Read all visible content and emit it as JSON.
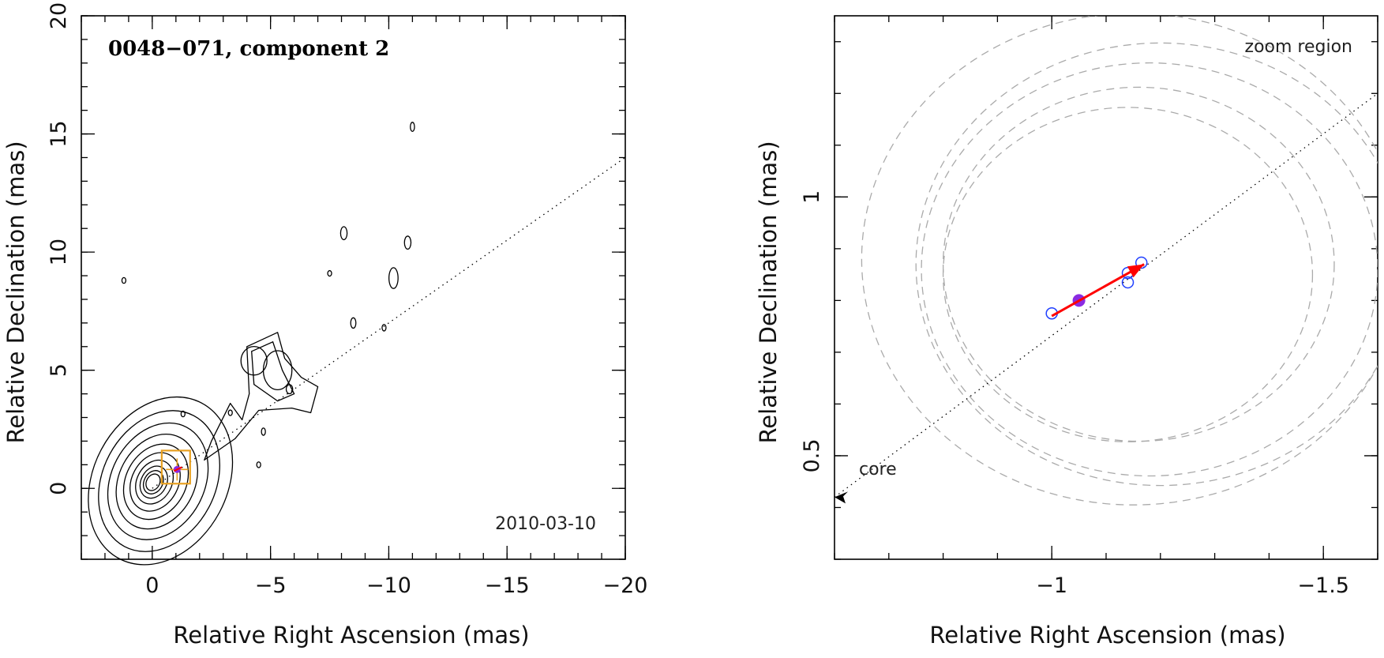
{
  "chart_data": [
    {
      "type": "contour",
      "title": "0048−071, component 2",
      "epoch": "2010-03-10",
      "xlabel": "Relative Right Ascension (mas)",
      "ylabel": "Relative Declination (mas)",
      "xlim": [
        3,
        -20
      ],
      "ylim": [
        -3,
        20
      ],
      "x_ticks": [
        0,
        -5,
        -10,
        -15,
        -20
      ],
      "x_tick_labels": [
        "0",
        "−5",
        "−10",
        "−15",
        "−20"
      ],
      "y_ticks": [
        0,
        5,
        10,
        15,
        20
      ],
      "y_tick_labels": [
        "0",
        "5",
        "10",
        "15",
        "20"
      ],
      "jet_axis_pa_deg": -55,
      "core_position": [
        0,
        0
      ],
      "component_position": [
        -1.05,
        0.8
      ],
      "zoom_box": {
        "x": [
          -0.5,
          -1.6
        ],
        "y": [
          0.3,
          1.35
        ]
      },
      "contour_center": [
        0.0,
        0.25
      ],
      "contour_levels": [
        0.34,
        0.48,
        0.66,
        0.9,
        1.2,
        1.55,
        1.95,
        2.4,
        2.9,
        3.45
      ],
      "blobs": [
        {
          "x": -4.3,
          "y": 5.4,
          "rx": 1.0,
          "ry": 1.1
        },
        {
          "x": -5.3,
          "y": 5.0,
          "rx": 1.1,
          "ry": 1.5
        },
        {
          "x": -5.8,
          "y": 4.2,
          "rx": 0.25,
          "ry": 0.35
        },
        {
          "x": -3.3,
          "y": 3.2,
          "rx": 0.12,
          "ry": 0.2
        },
        {
          "x": -1.3,
          "y": 3.15,
          "rx": 0.12,
          "ry": 0.22
        },
        {
          "x": -4.7,
          "y": 2.4,
          "rx": 0.12,
          "ry": 0.28
        },
        {
          "x": -4.5,
          "y": 1.0,
          "rx": 0.15,
          "ry": 0.22
        },
        {
          "x": -8.5,
          "y": 7.0,
          "rx": 0.2,
          "ry": 0.4
        },
        {
          "x": -9.8,
          "y": 6.8,
          "rx": 0.15,
          "ry": 0.25
        },
        {
          "x": -10.2,
          "y": 8.9,
          "rx": 0.35,
          "ry": 0.8
        },
        {
          "x": -8.1,
          "y": 10.8,
          "rx": 0.25,
          "ry": 0.5
        },
        {
          "x": -10.8,
          "y": 10.4,
          "rx": 0.25,
          "ry": 0.5
        },
        {
          "x": -7.5,
          "y": 9.1,
          "rx": 0.07,
          "ry": 0.13
        },
        {
          "x": -11.0,
          "y": 15.3,
          "rx": 0.16,
          "ry": 0.35
        },
        {
          "x": 1.2,
          "y": 8.8,
          "rx": 0.12,
          "ry": 0.22
        }
      ]
    },
    {
      "type": "scatter",
      "label": "zoom region",
      "core_label": "core",
      "xlabel": "Relative Right Ascension (mas)",
      "ylabel": "Relative Declination (mas)",
      "xlim": [
        -0.6,
        -1.6
      ],
      "ylim": [
        0.3,
        1.35
      ],
      "x_ticks": [
        -1,
        -1.5
      ],
      "x_tick_labels": [
        "−1",
        "−1.5"
      ],
      "y_ticks": [
        0.5,
        1
      ],
      "y_tick_labels": [
        "0.5",
        "1"
      ],
      "epochs_open_circles": [
        {
          "x": -1.0,
          "y": 0.775
        },
        {
          "x": -1.14,
          "y": 0.835
        },
        {
          "x": -1.14,
          "y": 0.853
        },
        {
          "x": -1.165,
          "y": 0.873
        }
      ],
      "reference_epoch_filled": {
        "x": -1.05,
        "y": 0.8
      },
      "arrow": {
        "from": [
          -1.0,
          0.77
        ],
        "to": [
          -1.17,
          0.87
        ],
        "color": "#ff0000"
      },
      "error_circles": [
        {
          "x": -1.14,
          "y": 0.85,
          "r": 0.34
        },
        {
          "x": -1.16,
          "y": 0.87,
          "r": 0.36
        },
        {
          "x": -1.18,
          "y": 0.86,
          "r": 0.42
        },
        {
          "x": -1.2,
          "y": 0.87,
          "r": 0.45
        },
        {
          "x": -1.15,
          "y": 0.88,
          "r": 0.5
        }
      ],
      "jet_axis": {
        "from": [
          -0.6,
          0.42
        ],
        "to": [
          -1.6,
          1.2
        ]
      },
      "colors": {
        "arrow": "#ff0000",
        "filled": "#8a2be2",
        "open": "#2040ff",
        "circles": "#aaaaaa",
        "box": "#e8a020"
      }
    }
  ]
}
